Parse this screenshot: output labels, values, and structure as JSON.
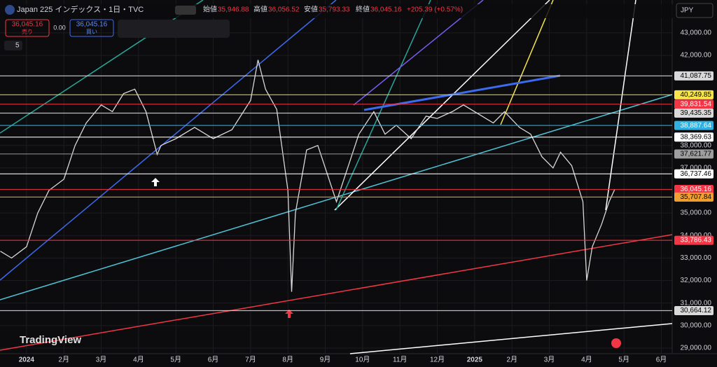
{
  "header": {
    "symbol": "Japan 225 インデックス・1日・TVC",
    "open_label": "始値",
    "open": "35,946.88",
    "high_label": "高値",
    "high": "36,056.52",
    "low_label": "安値",
    "low": "35,793.33",
    "close_label": "終値",
    "close": "36,045.16",
    "change": "+205.39 (+0.57%)",
    "sell_price": "36,045.16",
    "sell_label": "売り",
    "spread": "0.00",
    "buy_price": "36,045.16",
    "buy_label": "買い",
    "indicator_count": "5",
    "currency": "JPY",
    "brand": "TradingView"
  },
  "chart_data": {
    "type": "line",
    "color": "#d8d8d8",
    "grid": true,
    "x": [
      -0.7,
      -0.4,
      0,
      0.3,
      0.6,
      1,
      1.3,
      1.6,
      2,
      2.3,
      2.6,
      2.9,
      3.2,
      3.5,
      3.6,
      4,
      4.5,
      5,
      5.5,
      6,
      6.2,
      6.4,
      6.7,
      7,
      7.1,
      7.2,
      7.5,
      7.8,
      8.1,
      8.3,
      8.6,
      8.9,
      9.3,
      9.6,
      9.9,
      10.3,
      10.7,
      11,
      11.4,
      11.7,
      12.1,
      12.5,
      12.8,
      13.2,
      13.5,
      13.8,
      14.1,
      14.3,
      14.6,
      14.9,
      15,
      15.15,
      15.4,
      15.6,
      15.75
    ],
    "values": [
      33300,
      33000,
      33500,
      35000,
      36000,
      36500,
      38000,
      39000,
      39800,
      39500,
      40300,
      40500,
      39500,
      37600,
      38000,
      38300,
      38800,
      38300,
      38700,
      40000,
      41800,
      40500,
      39600,
      36000,
      31500,
      35000,
      37800,
      38000,
      36500,
      35500,
      37000,
      38500,
      39500,
      38500,
      38900,
      38300,
      39300,
      39200,
      39500,
      39800,
      39400,
      39000,
      39500,
      38800,
      38500,
      37500,
      37000,
      37700,
      37100,
      35500,
      32000,
      33500,
      34500,
      35500,
      36045
    ],
    "xlim": [
      -0.71,
      17.29
    ],
    "ylim": [
      28750,
      44460
    ],
    "xticks": [
      {
        "value": 0,
        "label": "2024"
      },
      {
        "value": 1,
        "label": "2月"
      },
      {
        "value": 2,
        "label": "3月"
      },
      {
        "value": 3,
        "label": "4月"
      },
      {
        "value": 4,
        "label": "5月"
      },
      {
        "value": 5,
        "label": "6月"
      },
      {
        "value": 6,
        "label": "7月"
      },
      {
        "value": 7,
        "label": "8月"
      },
      {
        "value": 8,
        "label": "9月"
      },
      {
        "value": 9,
        "label": "10月"
      },
      {
        "value": 10,
        "label": "11月"
      },
      {
        "value": 11,
        "label": "12月"
      },
      {
        "value": 12,
        "label": "2025"
      },
      {
        "value": 13,
        "label": "2月"
      },
      {
        "value": 14,
        "label": "3月"
      },
      {
        "value": 15,
        "label": "4月"
      },
      {
        "value": 16,
        "label": "5月"
      },
      {
        "value": 17,
        "label": "6月"
      }
    ],
    "yticks": [
      {
        "value": 43000,
        "label": "43,000.00"
      },
      {
        "value": 42000,
        "label": "42,000.00"
      },
      {
        "value": 38000,
        "label": "38,000.00"
      },
      {
        "value": 37000,
        "label": "37,000.00"
      },
      {
        "value": 35000,
        "label": "35,000.00"
      },
      {
        "value": 34000,
        "label": "34,000.00"
      },
      {
        "value": 33000,
        "label": "33,000.00"
      },
      {
        "value": 32000,
        "label": "32,000.00"
      },
      {
        "value": 31000,
        "label": "31,000.00"
      },
      {
        "value": 30000,
        "label": "30,000.00"
      },
      {
        "value": 29000,
        "label": "29,000.00"
      }
    ],
    "levels": [
      {
        "value": 41087.75,
        "label": "41,087.75",
        "color": "#d9d9d9"
      },
      {
        "value": 40249.85,
        "label": "40,249.85",
        "color": "#f5e44a"
      },
      {
        "value": 39831.54,
        "label": "39,831.54",
        "color": "#f23645"
      },
      {
        "value": 39435.35,
        "label": "39,435.35",
        "color": "#d9d9d9"
      },
      {
        "value": 38887.64,
        "label": "38,887.64",
        "color": "#2fb0e0"
      },
      {
        "value": 38369.63,
        "label": "38,369.63",
        "color": "#ffffff"
      },
      {
        "value": 37621.77,
        "label": "37,621.77",
        "color": "#9e9e9e"
      },
      {
        "value": 36737.46,
        "label": "36,737.46",
        "color": "#ffffff"
      },
      {
        "value": 36045.16,
        "label": "36,045.16",
        "color": "#f23645"
      },
      {
        "value": 35707.84,
        "label": "35,707.84",
        "color": "#f0a030"
      },
      {
        "value": 33786.43,
        "label": "33,786.43",
        "color": "#f23645"
      },
      {
        "value": 30664.12,
        "label": "30,664.12",
        "color": "#d9d9d9"
      }
    ]
  }
}
